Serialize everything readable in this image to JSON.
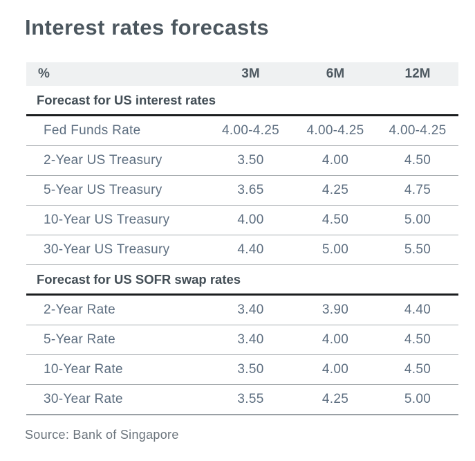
{
  "title": "Interest rates forecasts",
  "source": "Source: Bank of Singapore",
  "table": {
    "columns": [
      "%",
      "3M",
      "6M",
      "12M"
    ],
    "sections": [
      {
        "header": "Forecast for US interest rates",
        "rows": [
          {
            "label": "Fed Funds Rate",
            "values": [
              "4.00-4.25",
              "4.00-4.25",
              "4.00-4.25"
            ]
          },
          {
            "label": "2-Year US Treasury",
            "values": [
              "3.50",
              "4.00",
              "4.50"
            ]
          },
          {
            "label": "5-Year US Treasury",
            "values": [
              "3.65",
              "4.25",
              "4.75"
            ]
          },
          {
            "label": "10-Year US Treasury",
            "values": [
              "4.00",
              "4.50",
              "5.00"
            ]
          },
          {
            "label": "30-Year US Treasury",
            "values": [
              "4.40",
              "5.00",
              "5.50"
            ]
          }
        ]
      },
      {
        "header": "Forecast for US SOFR swap rates",
        "rows": [
          {
            "label": "2-Year Rate",
            "values": [
              "3.40",
              "3.90",
              "4.40"
            ]
          },
          {
            "label": "5-Year Rate",
            "values": [
              "3.40",
              "4.00",
              "4.50"
            ]
          },
          {
            "label": "10-Year Rate",
            "values": [
              "3.50",
              "4.00",
              "4.50"
            ]
          },
          {
            "label": "30-Year Rate",
            "values": [
              "3.55",
              "4.25",
              "5.00"
            ]
          }
        ]
      }
    ]
  },
  "colors": {
    "title_text": "#4b565e",
    "body_text": "#5d6e80",
    "section_rule": "#1b1d1f",
    "row_rule": "#a6abaf",
    "header_bg": "#eff1f2"
  }
}
